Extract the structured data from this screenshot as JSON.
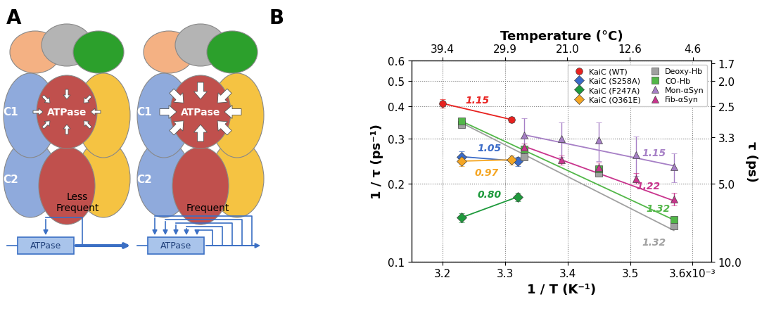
{
  "panel_labels": [
    "A",
    "B"
  ],
  "diagram": {
    "panels": [
      {
        "subunit_labels": [
          "C1",
          "C2"
        ],
        "center_label": "ATPase",
        "schematic_label": "Less\nFrequent",
        "schematic_box": "ATPase"
      },
      {
        "subunit_labels": [
          "C1",
          "C2"
        ],
        "center_label": "ATPase",
        "schematic_label": "Frequent",
        "schematic_box": "ATPase"
      }
    ]
  },
  "chart_data": {
    "type": "scatter",
    "xlabel": "1 / T (K⁻¹)",
    "ylabel": "1 / τ (ps⁻¹)",
    "y2label": "τ (ps)",
    "x2label": "Temperature (°C)",
    "log": "y",
    "grid": true,
    "legend": "upper right",
    "xlim": [
      0.00315,
      0.00363
    ],
    "xticks": [
      {
        "value": 0.0032,
        "label": "3.2"
      },
      {
        "value": 0.0033,
        "label": "3.3"
      },
      {
        "value": 0.0034,
        "label": "3.4"
      },
      {
        "value": 0.0035,
        "label": "3.5"
      },
      {
        "value": 0.0036,
        "label": "3.6x10⁻³"
      }
    ],
    "x2ticks": [
      39.4,
      29.9,
      21.0,
      12.6,
      4.6
    ],
    "ylim": [
      0.1,
      0.6
    ],
    "yticks": [
      0.1,
      0.2,
      0.3,
      0.4,
      0.5,
      0.6
    ],
    "y2lim": [
      10.0,
      1.667
    ],
    "y2ticks": [
      1.7,
      2.0,
      2.5,
      3.3,
      5.0,
      10.0
    ],
    "series": [
      {
        "name": "KaiC (WT)",
        "color": "#e8211f",
        "marker": "circle",
        "x": [
          0.0032,
          0.00331
        ],
        "values": [
          0.41,
          0.355
        ],
        "errors": [
          0.015,
          0.01
        ],
        "fit_x": [
          0.0032,
          0.00331
        ],
        "fit_values": [
          0.41,
          0.355
        ],
        "slope_label": "1.15"
      },
      {
        "name": "KaiC (S258A)",
        "color": "#3a6bc8",
        "marker": "diamond",
        "x": [
          0.00323,
          0.00332
        ],
        "values": [
          0.255,
          0.245
        ],
        "errors": [
          0.012,
          0.01
        ],
        "fit_x": [
          0.00323,
          0.00332
        ],
        "fit_values": [
          0.255,
          0.245
        ],
        "slope_label": "1.05"
      },
      {
        "name": "KaiC (F247A)",
        "color": "#1e9a3c",
        "marker": "diamond",
        "x": [
          0.00323,
          0.00332
        ],
        "values": [
          0.148,
          0.178
        ],
        "errors": [
          0.006,
          0.007
        ],
        "fit_x": [
          0.00323,
          0.00332
        ],
        "fit_values": [
          0.148,
          0.178
        ],
        "slope_label": "0.80"
      },
      {
        "name": "KaiC (Q361E)",
        "color": "#f5a623",
        "marker": "diamond",
        "x": [
          0.00323,
          0.00331
        ],
        "values": [
          0.245,
          0.248
        ],
        "errors": [
          0.01,
          0.01
        ],
        "fit_x": [
          0.00323,
          0.00331
        ],
        "fit_values": [
          0.245,
          0.248
        ],
        "slope_label": "0.97"
      },
      {
        "name": "Deoxy-Hb",
        "color": "#a0a0a0",
        "marker": "square",
        "x": [
          0.00323,
          0.00333,
          0.00345,
          0.00357
        ],
        "values": [
          0.34,
          0.255,
          0.22,
          0.137
        ],
        "errors": [
          0.008,
          0.006,
          0.005,
          0.003
        ],
        "fit_x": [
          0.00323,
          0.00357
        ],
        "fit_values": [
          0.345,
          0.132
        ],
        "slope_label": "1.32"
      },
      {
        "name": "CO-Hb",
        "color": "#52b748",
        "marker": "square",
        "x": [
          0.00323,
          0.00333,
          0.00345,
          0.00357
        ],
        "values": [
          0.35,
          0.272,
          0.228,
          0.145
        ],
        "errors": [
          0.008,
          0.006,
          0.005,
          0.003
        ],
        "fit_x": [
          0.00323,
          0.00357
        ],
        "fit_values": [
          0.35,
          0.145
        ],
        "slope_label": "1.32"
      },
      {
        "name": "Mon-αSyn",
        "color": "#a67fc6",
        "marker": "triangle",
        "x": [
          0.00333,
          0.00339,
          0.00345,
          0.00351,
          0.00357
        ],
        "values": [
          0.31,
          0.3,
          0.295,
          0.26,
          0.233
        ],
        "errors": [
          0.05,
          0.045,
          0.05,
          0.045,
          0.03
        ],
        "fit_x": [
          0.00333,
          0.00357
        ],
        "fit_values": [
          0.31,
          0.235
        ],
        "slope_label": "1.15"
      },
      {
        "name": "Fib-αSyn",
        "color": "#c9348d",
        "marker": "triangle",
        "x": [
          0.00333,
          0.00339,
          0.00345,
          0.00351,
          0.00357
        ],
        "values": [
          0.277,
          0.248,
          0.232,
          0.21,
          0.175
        ],
        "errors": [
          0.01,
          0.01,
          0.01,
          0.01,
          0.01
        ],
        "fit_x": [
          0.00333,
          0.00357
        ],
        "fit_values": [
          0.28,
          0.172
        ],
        "slope_label": "1.22"
      }
    ]
  }
}
